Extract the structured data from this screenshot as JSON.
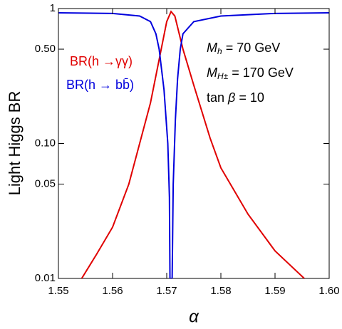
{
  "chart_data": {
    "type": "line",
    "xlabel": "α",
    "ylabel": "Light Higgs BR",
    "xlim": [
      1.55,
      1.6
    ],
    "xticks": [
      1.55,
      1.56,
      1.57,
      1.58,
      1.59,
      {
        "value": 1.6,
        "label": "1.60"
      }
    ],
    "ylim": [
      0.01,
      1
    ],
    "yticks": [
      0.01,
      0.05,
      {
        "value": 0.1,
        "label": "0.10"
      },
      {
        "value": 0.5,
        "label": "0.50"
      },
      1
    ],
    "log_y": true,
    "series": [
      {
        "name": "BR(h →γγ)",
        "color": "#e00000",
        "x": [
          1.5543,
          1.557,
          1.56,
          1.563,
          1.565,
          1.567,
          1.5685,
          1.57,
          1.5708,
          1.5715,
          1.573,
          1.575,
          1.578,
          1.58,
          1.585,
          1.59,
          1.5954
        ],
        "values": [
          0.01,
          0.015,
          0.024,
          0.05,
          0.1,
          0.2,
          0.4,
          0.8,
          0.95,
          0.88,
          0.5,
          0.27,
          0.11,
          0.066,
          0.03,
          0.016,
          0.01
        ]
      },
      {
        "name": "BR(h → bb̄)",
        "color": "#0000dd",
        "x": [
          1.55,
          1.56,
          1.565,
          1.567,
          1.568,
          1.5686,
          1.5695,
          1.5702,
          1.5705,
          1.5706,
          1.571,
          1.5712,
          1.5716,
          1.572,
          1.5725,
          1.573,
          1.575,
          1.58,
          1.59,
          1.6
        ],
        "values": [
          0.93,
          0.92,
          0.88,
          0.8,
          0.65,
          0.5,
          0.25,
          0.1,
          0.04,
          0.01,
          0.01,
          0.05,
          0.15,
          0.3,
          0.5,
          0.65,
          0.8,
          0.88,
          0.92,
          0.93
        ]
      }
    ],
    "annotations": [
      {
        "parts": [
          "M",
          "h",
          " = 70 GeV"
        ]
      },
      {
        "parts": [
          "M",
          "H±",
          " = 170 GeV"
        ]
      },
      {
        "parts": [
          "tan ",
          "β",
          " = 10"
        ]
      }
    ]
  }
}
